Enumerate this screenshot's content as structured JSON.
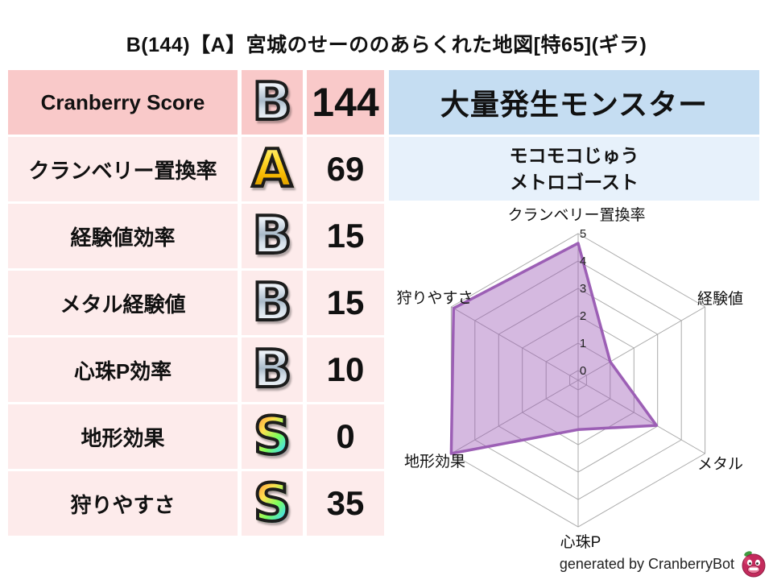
{
  "title": "B(144)【A】宮城のせーののあらくれた地図[特65](ギラ)",
  "stats_table": {
    "rows": [
      {
        "label": "Cranberry Score",
        "grade": "B",
        "value": "144"
      },
      {
        "label": "クランベリー置換率",
        "grade": "A",
        "value": "69"
      },
      {
        "label": "経験値効率",
        "grade": "B",
        "value": "15"
      },
      {
        "label": "メタル経験値",
        "grade": "B",
        "value": "15"
      },
      {
        "label": "心珠P効率",
        "grade": "B",
        "value": "10"
      },
      {
        "label": "地形効果",
        "grade": "S",
        "value": "0"
      },
      {
        "label": "狩りやすさ",
        "grade": "S",
        "value": "35"
      }
    ]
  },
  "monster_panel": {
    "header": "大量発生モンスター",
    "monsters": [
      "モコモコじゅう",
      "メトロゴースト"
    ]
  },
  "chart_data": {
    "type": "radar",
    "title": "",
    "categories": [
      "クランベリー置換率",
      "経験値",
      "メタル",
      "心珠P",
      "地形効果",
      "狩りやすさ"
    ],
    "values": [
      4.65,
      1.0,
      2.95,
      1.45,
      5.0,
      4.9
    ],
    "ticks": [
      0,
      1,
      2,
      3,
      4,
      5
    ],
    "rmin": 0,
    "rmax": 5,
    "grid": true,
    "legend": false,
    "fill_color": "#9b59b6",
    "fill_opacity": 0.42,
    "stroke_color": "#9c5fb5",
    "grid_color": "#aaaaaa",
    "tick_label_color": "#222222",
    "axis_label_color": "#111111"
  },
  "footer": {
    "credit": "generated by CranberryBot",
    "logo": "cranberry-bot-icon"
  },
  "colors": {
    "row_primary_bg": "#f9c9c9",
    "row_secondary_bg": "#fdebeb",
    "monster_header_bg": "#c5ddf2",
    "monster_box_bg": "#e7f1fb",
    "grade_silver": "#cdd8e4",
    "grade_gold": "#f4c713",
    "grade_rainbow_start": "#ff6ec7"
  }
}
